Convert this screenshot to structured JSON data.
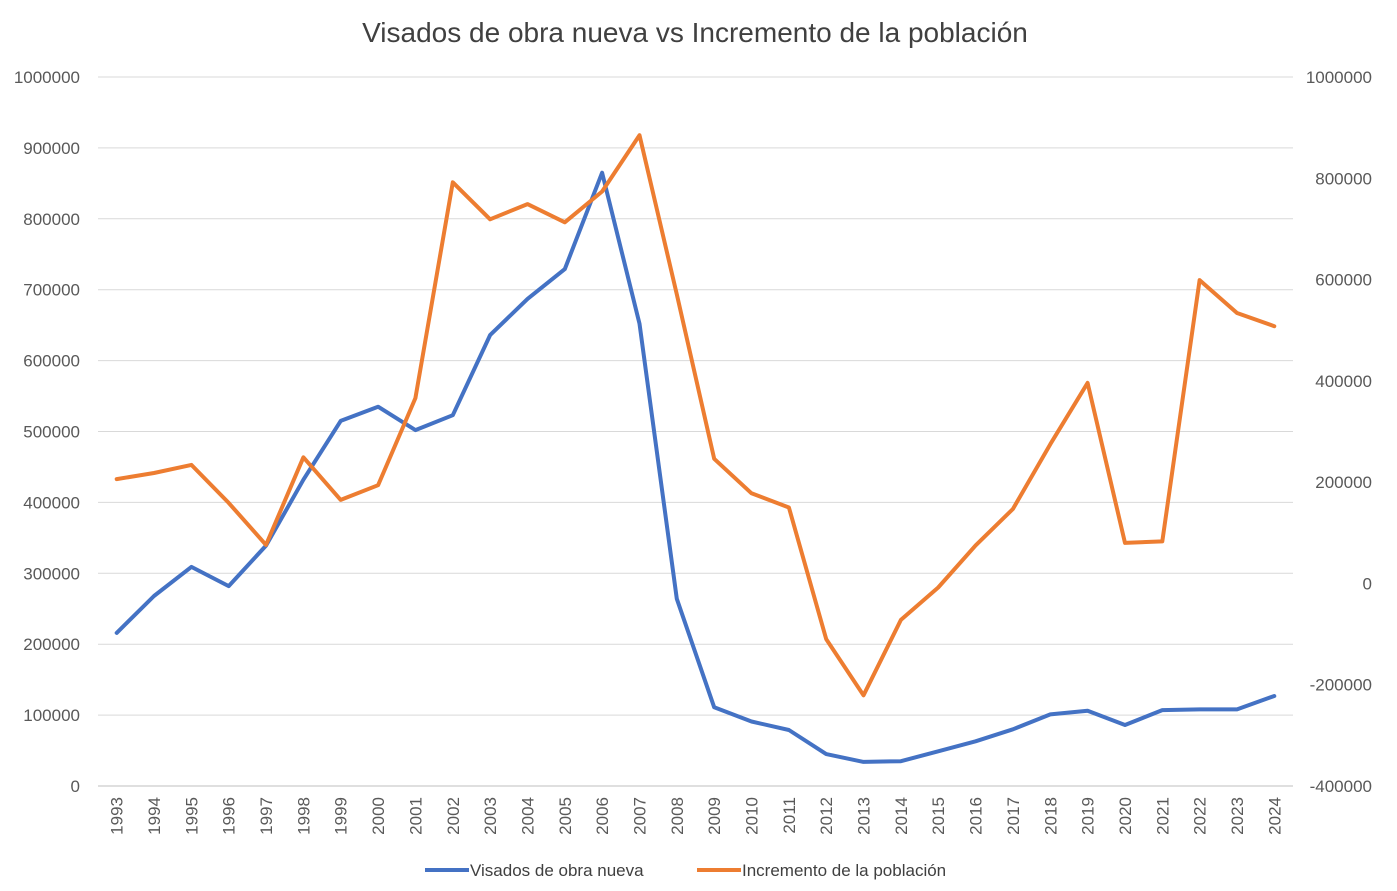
{
  "chart_data": {
    "type": "line",
    "title": "Visados de obra nueva vs Incremento de la población",
    "xlabel": "",
    "ylabel": "",
    "y2label": "",
    "grid": true,
    "legend_position": "bottom",
    "categories": [
      "1993",
      "1994",
      "1995",
      "1996",
      "1997",
      "1998",
      "1999",
      "2000",
      "2001",
      "2002",
      "2003",
      "2004",
      "2005",
      "2006",
      "2007",
      "2008",
      "2009",
      "2010",
      "2011",
      "2012",
      "2013",
      "2014",
      "2015",
      "2016",
      "2017",
      "2018",
      "2019",
      "2020",
      "2021",
      "2022",
      "2023",
      "2024"
    ],
    "ylim": [
      0,
      1000000
    ],
    "y_ticks": [
      "0",
      "100000",
      "200000",
      "300000",
      "400000",
      "500000",
      "600000",
      "700000",
      "800000",
      "900000",
      "1000000"
    ],
    "y2lim": [
      -400000,
      1000000
    ],
    "y2_ticks": [
      "-400000",
      "-200000",
      "0",
      "200000",
      "400000",
      "600000",
      "800000",
      "1000000"
    ],
    "series": [
      {
        "name": "Visados de obra nueva",
        "axis": "left",
        "color": "#4472C4",
        "values": [
          216000,
          268000,
          309000,
          282000,
          339000,
          432000,
          515000,
          535000,
          502000,
          523000,
          636000,
          687000,
          729000,
          865000,
          652000,
          264000,
          111000,
          91000,
          79000,
          45000,
          34000,
          35000,
          49000,
          63000,
          80000,
          101000,
          106000,
          86000,
          107000,
          108000,
          108000,
          127000
        ]
      },
      {
        "name": "Incremento de la población",
        "axis": "right",
        "color": "#ED7D31",
        "values": [
          206000,
          218000,
          234000,
          159000,
          76000,
          249000,
          165000,
          194000,
          366000,
          792000,
          719000,
          749000,
          713000,
          774000,
          885000,
          571000,
          246000,
          178000,
          150000,
          -110000,
          -221000,
          -72000,
          -8000,
          75000,
          147000,
          275000,
          396000,
          80000,
          83000,
          599000,
          534000,
          508000
        ]
      }
    ]
  }
}
